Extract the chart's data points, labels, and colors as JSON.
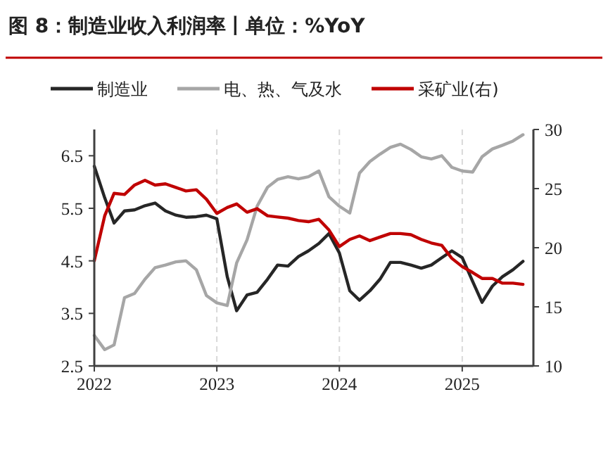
{
  "chart_data": {
    "type": "line",
    "title": "图 8：制造业收入利润率丨单位：%YoY",
    "x": [
      "2022-01",
      "2022-02",
      "2022-03",
      "2022-04",
      "2022-05",
      "2022-06",
      "2022-07",
      "2022-08",
      "2022-09",
      "2022-10",
      "2022-11",
      "2022-12",
      "2023-01",
      "2023-02",
      "2023-03",
      "2023-04",
      "2023-05",
      "2023-06",
      "2023-07",
      "2023-08",
      "2023-09",
      "2023-10",
      "2023-11",
      "2023-12",
      "2024-01",
      "2024-02",
      "2024-03",
      "2024-04",
      "2024-05",
      "2024-06",
      "2024-07",
      "2024-08",
      "2024-09",
      "2024-10",
      "2024-11",
      "2024-12",
      "2025-01",
      "2025-02",
      "2025-03",
      "2025-04",
      "2025-05",
      "2025-06",
      "2025-07"
    ],
    "series": [
      {
        "name": "制造业",
        "color": "#262626",
        "values": [
          6.3,
          5.7,
          5.22,
          5.45,
          5.47,
          5.55,
          5.6,
          5.45,
          5.37,
          5.33,
          5.34,
          5.37,
          5.3,
          4.2,
          3.55,
          3.85,
          3.9,
          4.15,
          4.42,
          4.4,
          4.58,
          4.69,
          4.83,
          5.02,
          4.65,
          3.93,
          3.75,
          3.93,
          4.15,
          4.47,
          4.47,
          4.42,
          4.36,
          4.42,
          4.56,
          4.69,
          4.56,
          4.11,
          3.71,
          4.02,
          4.2,
          4.33,
          4.49
        ]
      },
      {
        "name": "电、热、气及水",
        "color": "#a6a6a6",
        "values": [
          3.08,
          2.81,
          2.9,
          3.8,
          3.88,
          4.15,
          4.37,
          4.42,
          4.48,
          4.5,
          4.33,
          3.84,
          3.7,
          3.65,
          4.46,
          4.9,
          5.54,
          5.9,
          6.05,
          6.1,
          6.06,
          6.1,
          6.21,
          5.72,
          5.54,
          5.41,
          6.17,
          6.39,
          6.53,
          6.66,
          6.72,
          6.62,
          6.48,
          6.44,
          6.5,
          6.28,
          6.21,
          6.19,
          6.48,
          6.63,
          6.7,
          6.78,
          6.9
        ]
      },
      {
        "name": "采矿业(右)",
        "color": "#c00000",
        "axis": "y2",
        "values": [
          18.9,
          22.7,
          24.6,
          24.5,
          25.3,
          25.7,
          25.3,
          25.4,
          25.1,
          24.8,
          24.9,
          24.1,
          22.9,
          23.4,
          23.7,
          23.0,
          23.3,
          22.7,
          22.6,
          22.5,
          22.3,
          22.2,
          22.4,
          21.5,
          20.1,
          20.7,
          21.0,
          20.6,
          20.9,
          21.2,
          21.2,
          21.1,
          20.7,
          20.4,
          20.2,
          19.1,
          18.4,
          17.9,
          17.4,
          17.4,
          17.0,
          17.0,
          16.9
        ]
      }
    ],
    "xlim": [
      "2022-01",
      "2025-08"
    ],
    "xticks": [
      {
        "value": "2022",
        "label": "2022"
      },
      {
        "value": "2023",
        "label": "2023"
      },
      {
        "value": "2024",
        "label": "2024"
      },
      {
        "value": "2025",
        "label": "2025"
      }
    ],
    "ylim": [
      2.5,
      7
    ],
    "yticks": [
      2.5,
      3.5,
      4.5,
      5.5,
      6.5
    ],
    "y2lim": [
      10,
      30
    ],
    "y2ticks": [
      10,
      15,
      20,
      25,
      30
    ],
    "grid": "x",
    "legend": "top",
    "marker": "none",
    "line_style": "solid"
  }
}
